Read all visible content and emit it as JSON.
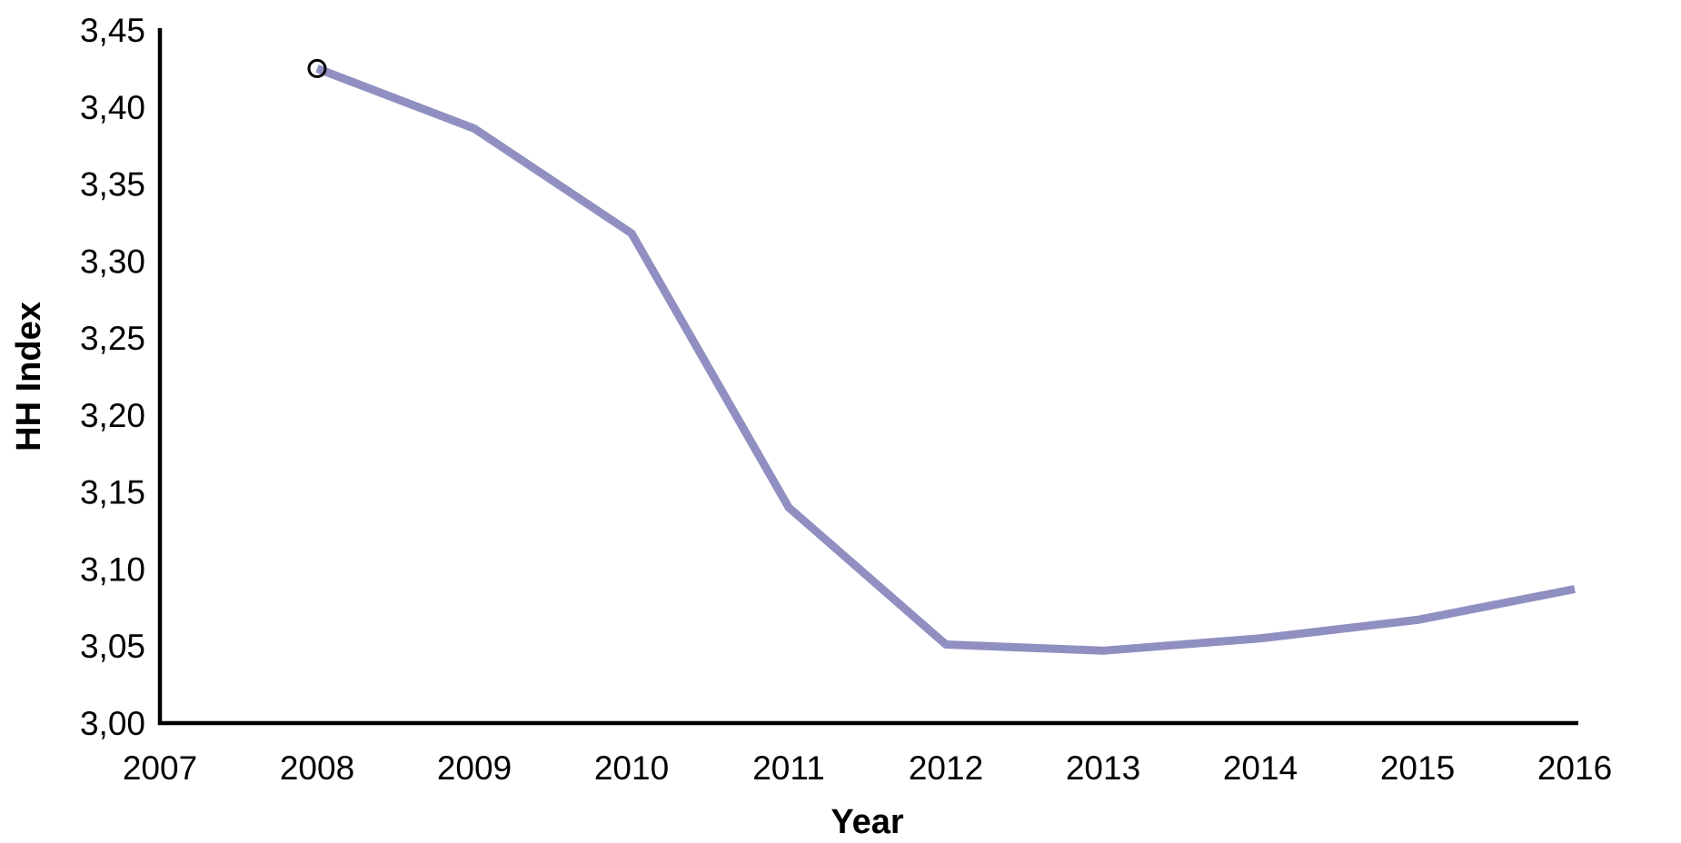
{
  "chart_data": {
    "type": "line",
    "title": "",
    "xlabel": "Year",
    "ylabel": "HH Index",
    "x_ticks": [
      "2007",
      "2008",
      "2009",
      "2010",
      "2011",
      "2012",
      "2013",
      "2014",
      "2015",
      "2016"
    ],
    "x_range": [
      2007,
      2016
    ],
    "ylim": [
      3.0,
      3.45
    ],
    "y_tick_step": 0.05,
    "grid": false,
    "legend": "none",
    "y_ticks": [
      {
        "value": 3.0,
        "label": "3,00"
      },
      {
        "value": 3.05,
        "label": "3,05"
      },
      {
        "value": 3.1,
        "label": "3,10"
      },
      {
        "value": 3.15,
        "label": "3,15"
      },
      {
        "value": 3.2,
        "label": "3,20"
      },
      {
        "value": 3.25,
        "label": "3,25"
      },
      {
        "value": 3.3,
        "label": "3,30"
      },
      {
        "value": 3.35,
        "label": "3,35"
      },
      {
        "value": 3.4,
        "label": "3,40"
      },
      {
        "value": 3.45,
        "label": "3,45"
      }
    ],
    "series": [
      {
        "name": "HH Index",
        "x": [
          2008,
          2009,
          2010,
          2011,
          2012,
          2013,
          2014,
          2015,
          2016
        ],
        "values": [
          3.425,
          3.386,
          3.318,
          3.14,
          3.051,
          3.047,
          3.055,
          3.067,
          3.087
        ],
        "color": "#8f8fc1",
        "line_width": 9,
        "first_point_marker": {
          "shape": "open-circle",
          "stroke": "#000000",
          "fill": "none",
          "radius": 9,
          "stroke_width": 3
        }
      }
    ],
    "axis_color": "#000000",
    "text_color": "#000000",
    "background_color": "#ffffff"
  }
}
